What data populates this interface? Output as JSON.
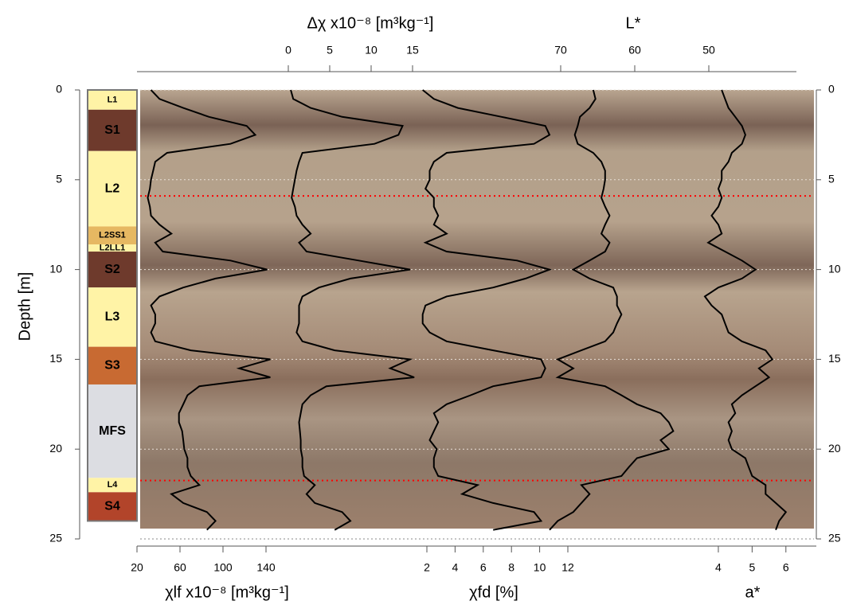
{
  "chart_data": {
    "type": "line",
    "ylabel": "Depth [m]",
    "ylim": [
      0,
      25
    ],
    "yticks": [
      0,
      5,
      10,
      15,
      20,
      25
    ],
    "y_inverted": true,
    "grid": true,
    "depth": [
      0,
      0.5,
      1,
      1.5,
      2,
      2.5,
      3,
      3.5,
      4,
      4.5,
      5,
      5.5,
      6,
      6.5,
      7,
      7.5,
      8,
      8.5,
      9,
      9.5,
      10,
      10.5,
      11,
      11.5,
      12,
      12.5,
      13,
      13.5,
      14,
      14.5,
      15,
      15.5,
      16,
      16.5,
      17,
      17.5,
      18,
      18.5,
      19,
      19.5,
      20,
      20.5,
      21,
      21.5,
      22,
      22.5,
      23,
      23.5,
      24,
      24.5
    ],
    "series": [
      {
        "name": "χlf x10⁻⁸ [m³kg⁻¹]",
        "color": "#000000",
        "axis": "bottom",
        "xlim": [
          20,
          150
        ],
        "xticks": [
          20,
          60,
          100,
          140
        ],
        "values": [
          33,
          41,
          63,
          87,
          122,
          130,
          107,
          48,
          37,
          35,
          33,
          32,
          30,
          32,
          33,
          41,
          52,
          37,
          44,
          107,
          141,
          93,
          63,
          41,
          33,
          37,
          37,
          33,
          37,
          70,
          144,
          115,
          144,
          78,
          67,
          63,
          59,
          59,
          62,
          63,
          64,
          67,
          67,
          70,
          78,
          52,
          63,
          85,
          93,
          85
        ]
      },
      {
        "name": "Δχ x10⁻⁸ [m³kg⁻¹]",
        "color": "#000000",
        "axis": "top",
        "xlim": [
          0,
          15
        ],
        "xticks": [
          0,
          5,
          10,
          15
        ],
        "values": [
          0.3,
          0.6,
          2.7,
          6.5,
          13.8,
          13.3,
          10.4,
          1.7,
          1.3,
          1.0,
          0.8,
          0.6,
          0.4,
          0.8,
          1.0,
          1.7,
          2.7,
          1.3,
          2.2,
          8.5,
          14.7,
          7.5,
          3.7,
          1.7,
          1.3,
          1.3,
          1.3,
          1.0,
          1.7,
          5.6,
          14.7,
          12.3,
          15.2,
          4.6,
          2.7,
          1.7,
          1.5,
          1.3,
          1.4,
          1.5,
          1.5,
          1.7,
          1.7,
          1.9,
          3.2,
          2.2,
          3.2,
          6.5,
          7.5,
          5.6
        ]
      },
      {
        "name": "χfd [%]",
        "color": "#000000",
        "axis": "bottom",
        "xlim": [
          1,
          12
        ],
        "xticks": [
          2,
          4,
          6,
          8,
          10,
          12
        ],
        "values": [
          1.7,
          2.5,
          4.2,
          7.3,
          10.4,
          10.7,
          9.6,
          3.4,
          2.5,
          2.2,
          2.2,
          1.9,
          2.5,
          2.5,
          2.8,
          2.5,
          3.4,
          1.9,
          3.4,
          8.4,
          10.7,
          9.0,
          6.7,
          3.4,
          1.9,
          1.7,
          1.7,
          2.2,
          3.4,
          6.7,
          10.1,
          10.4,
          10.1,
          6.7,
          5.1,
          3.4,
          2.5,
          2.8,
          2.5,
          2.2,
          2.7,
          2.5,
          2.5,
          2.8,
          5.6,
          4.5,
          6.7,
          9.6,
          10.1,
          6.7
        ]
      },
      {
        "name": "L*",
        "color": "#000000",
        "axis": "top",
        "xlim": [
          72,
          48
        ],
        "xticks": [
          70,
          60,
          50
        ],
        "values": [
          65.6,
          65.3,
          66.1,
          67.4,
          67.7,
          68.1,
          67.7,
          65.6,
          64.5,
          64.0,
          64.0,
          64.2,
          64.5,
          64.0,
          63.4,
          64.0,
          64.5,
          63.4,
          64.0,
          66.1,
          68.3,
          66.1,
          62.9,
          62.4,
          62.4,
          61.8,
          62.4,
          62.9,
          64.0,
          67.2,
          70.4,
          68.3,
          70.4,
          64.0,
          61.8,
          59.7,
          56.5,
          55.4,
          54.8,
          56.5,
          55.4,
          59.7,
          60.8,
          61.8,
          67.2,
          66.1,
          67.2,
          68.3,
          70.4,
          71.5
        ]
      },
      {
        "name": "a*",
        "color": "#000000",
        "axis": "bottom",
        "xlim": [
          3.5,
          6.5
        ],
        "xticks": [
          4,
          5,
          6
        ],
        "values": [
          4.1,
          4.2,
          4.3,
          4.5,
          4.7,
          4.8,
          4.7,
          4.4,
          4.3,
          4.1,
          4.1,
          4.0,
          4.1,
          4.0,
          3.8,
          4.0,
          4.1,
          3.7,
          4.2,
          4.7,
          5.1,
          4.7,
          4.0,
          3.6,
          3.8,
          4.1,
          4.2,
          4.3,
          4.7,
          5.4,
          5.6,
          5.2,
          5.5,
          5.1,
          4.7,
          4.4,
          4.5,
          4.3,
          4.4,
          4.3,
          4.4,
          4.8,
          4.9,
          5.0,
          5.4,
          5.4,
          5.7,
          6.0,
          5.8,
          5.7
        ]
      }
    ],
    "units": [
      {
        "label": "L1",
        "top": 0,
        "bottom": 1.1,
        "color": "#fff3a6",
        "label_color": "#000000"
      },
      {
        "label": "S1",
        "top": 1.1,
        "bottom": 3.4,
        "color": "#6e3a2c",
        "label_color": "#ffffff"
      },
      {
        "label": "L2",
        "top": 3.4,
        "bottom": 7.6,
        "color": "#fff3a6",
        "label_color": "#000000"
      },
      {
        "label": "L2SS1",
        "top": 7.6,
        "bottom": 8.6,
        "color": "#e6b862",
        "label_color": "#000000"
      },
      {
        "label": "L2LL1",
        "top": 8.6,
        "bottom": 9.0,
        "color": "#fff3a6",
        "label_color": "#000000"
      },
      {
        "label": "S2",
        "top": 9.0,
        "bottom": 11.0,
        "color": "#6e3a2c",
        "label_color": "#ffffff"
      },
      {
        "label": "L3",
        "top": 11.0,
        "bottom": 14.3,
        "color": "#fff3a6",
        "label_color": "#000000"
      },
      {
        "label": "S3",
        "top": 14.3,
        "bottom": 16.4,
        "color": "#c86a32",
        "label_color": "#ffffff"
      },
      {
        "label": "MFS",
        "top": 16.4,
        "bottom": 21.6,
        "color": "#dcdde2",
        "label_color": "#000000"
      },
      {
        "label": "L4",
        "top": 21.6,
        "bottom": 22.4,
        "color": "#fff3a6",
        "label_color": "#000000"
      },
      {
        "label": "S4",
        "top": 22.4,
        "bottom": 24.0,
        "color": "#b2442a",
        "label_color": "#ffffff"
      }
    ],
    "marker_lines": {
      "depths": [
        5.9,
        21.75
      ],
      "color": "#ff0000"
    }
  }
}
